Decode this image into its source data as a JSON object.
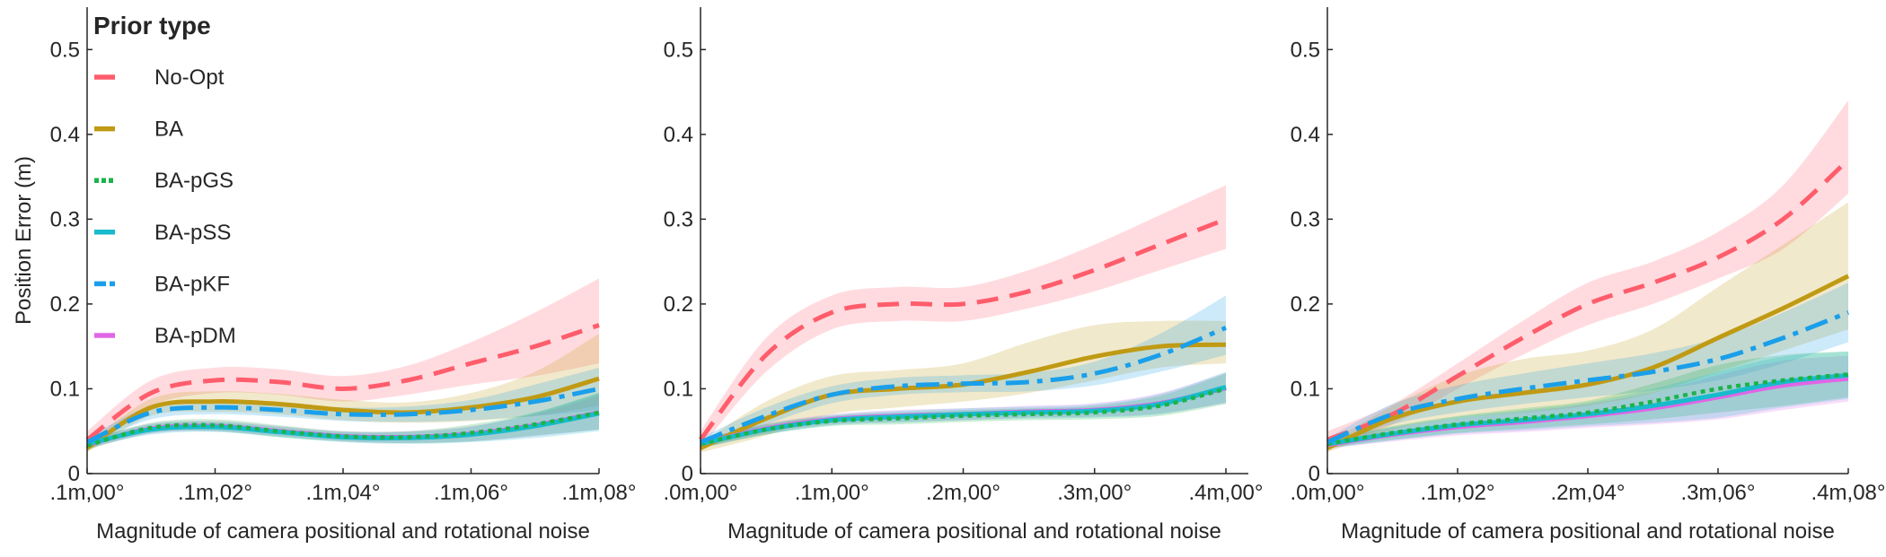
{
  "chart_data": [
    {
      "type": "line",
      "title": "",
      "xlabel": "Magnitude of camera positional and rotational noise",
      "ylabel": "Position Error (m)",
      "ylim": [
        0,
        0.55
      ],
      "yticks": [
        0,
        0.1,
        0.2,
        0.3,
        0.4,
        0.5
      ],
      "ytick_labels": [
        "0",
        "0.1",
        "0.2",
        "0.3",
        "0.4",
        "0.5"
      ],
      "xlim": [
        0,
        4
      ],
      "xticks": [
        0,
        1,
        2,
        3,
        4
      ],
      "xtick_labels": [
        ".1m,00°",
        ".1m,02°",
        ".1m,04°",
        ".1m,06°",
        ".1m,08°"
      ],
      "x": [
        0,
        0.5,
        1,
        1.5,
        2,
        2.5,
        3,
        3.5,
        4
      ],
      "series": [
        {
          "name": "No-Opt",
          "color": "#FF5D6C",
          "style": "dashed",
          "values": [
            0.04,
            0.095,
            0.11,
            0.108,
            0.1,
            0.11,
            0.13,
            0.15,
            0.175
          ],
          "lower": [
            0.03,
            0.08,
            0.095,
            0.093,
            0.085,
            0.093,
            0.105,
            0.115,
            0.13
          ],
          "upper": [
            0.05,
            0.11,
            0.125,
            0.123,
            0.115,
            0.127,
            0.155,
            0.19,
            0.23
          ]
        },
        {
          "name": "BA",
          "color": "#C09A14",
          "style": "solid",
          "values": [
            0.03,
            0.078,
            0.085,
            0.082,
            0.075,
            0.072,
            0.078,
            0.09,
            0.112
          ],
          "lower": [
            0.025,
            0.068,
            0.073,
            0.07,
            0.063,
            0.06,
            0.062,
            0.068,
            0.08
          ],
          "upper": [
            0.035,
            0.088,
            0.097,
            0.094,
            0.087,
            0.084,
            0.095,
            0.12,
            0.165
          ]
        },
        {
          "name": "BA-pGS",
          "color": "#1BB34A",
          "style": "dotted",
          "values": [
            0.033,
            0.054,
            0.057,
            0.05,
            0.044,
            0.043,
            0.048,
            0.058,
            0.072
          ],
          "lower": [
            0.028,
            0.048,
            0.05,
            0.043,
            0.038,
            0.036,
            0.038,
            0.045,
            0.052
          ],
          "upper": [
            0.038,
            0.06,
            0.064,
            0.057,
            0.05,
            0.05,
            0.058,
            0.072,
            0.095
          ]
        },
        {
          "name": "BA-pSS",
          "color": "#17BBCC",
          "style": "solid",
          "values": [
            0.035,
            0.052,
            0.055,
            0.049,
            0.043,
            0.042,
            0.046,
            0.056,
            0.071
          ],
          "lower": [
            0.03,
            0.046,
            0.049,
            0.043,
            0.037,
            0.035,
            0.037,
            0.042,
            0.05
          ],
          "upper": [
            0.04,
            0.058,
            0.061,
            0.055,
            0.049,
            0.049,
            0.055,
            0.072,
            0.095
          ]
        },
        {
          "name": "BA-pKF",
          "color": "#1A9FEA",
          "style": "dashdot",
          "values": [
            0.037,
            0.072,
            0.078,
            0.075,
            0.07,
            0.07,
            0.075,
            0.085,
            0.1
          ],
          "lower": [
            0.032,
            0.064,
            0.07,
            0.067,
            0.062,
            0.061,
            0.063,
            0.068,
            0.075
          ],
          "upper": [
            0.042,
            0.08,
            0.086,
            0.083,
            0.078,
            0.079,
            0.087,
            0.105,
            0.125
          ]
        },
        {
          "name": "BA-pDM",
          "color": "#E066E6",
          "style": "solid",
          "values": [
            0.034,
            0.053,
            0.056,
            0.05,
            0.044,
            0.043,
            0.047,
            0.057,
            0.072
          ],
          "lower": [
            0.029,
            0.047,
            0.05,
            0.044,
            0.038,
            0.036,
            0.038,
            0.044,
            0.052
          ],
          "upper": [
            0.039,
            0.059,
            0.062,
            0.056,
            0.05,
            0.05,
            0.056,
            0.07,
            0.092
          ]
        }
      ],
      "legend": {
        "title": "Prior type",
        "placement": "top-left"
      }
    },
    {
      "type": "line",
      "title": "",
      "xlabel": "Magnitude of camera positional and rotational noise",
      "ylabel": "",
      "ylim": [
        0,
        0.55
      ],
      "yticks": [
        0,
        0.1,
        0.2,
        0.3,
        0.4,
        0.5
      ],
      "ytick_labels": [
        "0",
        "0.1",
        "0.2",
        "0.3",
        "0.4",
        "0.5"
      ],
      "xlim": [
        0,
        4
      ],
      "xticks": [
        0,
        1,
        2,
        3,
        4
      ],
      "xtick_labels": [
        ".0m,00°",
        ".1m,00°",
        ".2m,00°",
        ".3m,00°",
        ".4m,00°"
      ],
      "x": [
        0,
        0.5,
        1,
        1.5,
        2,
        2.5,
        3,
        3.5,
        4
      ],
      "series": [
        {
          "name": "No-Opt",
          "color": "#FF5D6C",
          "style": "dashed",
          "values": [
            0.04,
            0.14,
            0.19,
            0.2,
            0.2,
            0.215,
            0.24,
            0.27,
            0.3
          ],
          "lower": [
            0.03,
            0.12,
            0.17,
            0.18,
            0.18,
            0.195,
            0.215,
            0.24,
            0.265
          ],
          "upper": [
            0.05,
            0.16,
            0.21,
            0.22,
            0.22,
            0.24,
            0.27,
            0.305,
            0.34
          ]
        },
        {
          "name": "BA",
          "color": "#C09A14",
          "style": "solid",
          "values": [
            0.03,
            0.065,
            0.093,
            0.1,
            0.105,
            0.12,
            0.138,
            0.15,
            0.152
          ],
          "lower": [
            0.025,
            0.045,
            0.07,
            0.078,
            0.085,
            0.095,
            0.11,
            0.125,
            0.13
          ],
          "upper": [
            0.035,
            0.085,
            0.115,
            0.122,
            0.13,
            0.155,
            0.175,
            0.18,
            0.18
          ]
        },
        {
          "name": "BA-pGS",
          "color": "#1BB34A",
          "style": "dotted",
          "values": [
            0.035,
            0.052,
            0.062,
            0.065,
            0.068,
            0.07,
            0.072,
            0.08,
            0.1
          ],
          "lower": [
            0.03,
            0.046,
            0.056,
            0.058,
            0.061,
            0.063,
            0.064,
            0.068,
            0.082
          ],
          "upper": [
            0.04,
            0.058,
            0.068,
            0.072,
            0.075,
            0.077,
            0.08,
            0.092,
            0.118
          ]
        },
        {
          "name": "BA-pSS",
          "color": "#17BBCC",
          "style": "solid",
          "values": [
            0.035,
            0.052,
            0.063,
            0.067,
            0.07,
            0.072,
            0.074,
            0.082,
            0.102
          ],
          "lower": [
            0.03,
            0.046,
            0.057,
            0.06,
            0.063,
            0.065,
            0.066,
            0.07,
            0.084
          ],
          "upper": [
            0.04,
            0.058,
            0.069,
            0.074,
            0.077,
            0.079,
            0.082,
            0.094,
            0.12
          ]
        },
        {
          "name": "BA-pKF",
          "color": "#1A9FEA",
          "style": "dashdot",
          "values": [
            0.037,
            0.068,
            0.093,
            0.103,
            0.106,
            0.108,
            0.118,
            0.14,
            0.172
          ],
          "lower": [
            0.032,
            0.058,
            0.083,
            0.093,
            0.096,
            0.097,
            0.104,
            0.12,
            0.14
          ],
          "upper": [
            0.042,
            0.078,
            0.103,
            0.113,
            0.116,
            0.119,
            0.132,
            0.165,
            0.21
          ]
        },
        {
          "name": "BA-pDM",
          "color": "#E066E6",
          "style": "solid",
          "values": [
            0.035,
            0.053,
            0.064,
            0.068,
            0.07,
            0.073,
            0.075,
            0.083,
            0.101
          ],
          "lower": [
            0.03,
            0.047,
            0.058,
            0.061,
            0.063,
            0.066,
            0.067,
            0.071,
            0.083
          ],
          "upper": [
            0.04,
            0.059,
            0.07,
            0.075,
            0.077,
            0.08,
            0.083,
            0.095,
            0.119
          ]
        }
      ]
    },
    {
      "type": "line",
      "title": "",
      "xlabel": "Magnitude of camera positional and rotational noise",
      "ylabel": "",
      "ylim": [
        0,
        0.55
      ],
      "yticks": [
        0,
        0.1,
        0.2,
        0.3,
        0.4,
        0.5
      ],
      "ytick_labels": [
        "0",
        "0.1",
        "0.2",
        "0.3",
        "0.4",
        "0.5"
      ],
      "xlim": [
        0,
        4
      ],
      "xticks": [
        0,
        1,
        2,
        3,
        4
      ],
      "xtick_labels": [
        ".0m,00°",
        ".1m,02°",
        ".2m,04°",
        ".3m,06°",
        ".4m,08°"
      ],
      "x": [
        0,
        0.5,
        1,
        1.5,
        2,
        2.5,
        3,
        3.5,
        4
      ],
      "series": [
        {
          "name": "No-Opt",
          "color": "#FF5D6C",
          "style": "dashed",
          "values": [
            0.04,
            0.07,
            0.115,
            0.16,
            0.2,
            0.225,
            0.255,
            0.3,
            0.37
          ],
          "lower": [
            0.03,
            0.058,
            0.1,
            0.14,
            0.175,
            0.2,
            0.23,
            0.265,
            0.33
          ],
          "upper": [
            0.05,
            0.082,
            0.13,
            0.18,
            0.225,
            0.25,
            0.285,
            0.34,
            0.44
          ]
        },
        {
          "name": "BA",
          "color": "#C09A14",
          "style": "solid",
          "values": [
            0.03,
            0.065,
            0.085,
            0.095,
            0.105,
            0.125,
            0.16,
            0.195,
            0.233
          ],
          "lower": [
            0.025,
            0.052,
            0.065,
            0.072,
            0.08,
            0.095,
            0.12,
            0.145,
            0.17
          ],
          "upper": [
            0.035,
            0.08,
            0.115,
            0.135,
            0.145,
            0.17,
            0.22,
            0.27,
            0.32
          ]
        },
        {
          "name": "BA-pGS",
          "color": "#1BB34A",
          "style": "dotted",
          "values": [
            0.035,
            0.048,
            0.058,
            0.065,
            0.072,
            0.085,
            0.1,
            0.11,
            0.117
          ],
          "lower": [
            0.03,
            0.04,
            0.048,
            0.053,
            0.058,
            0.064,
            0.072,
            0.08,
            0.09
          ],
          "upper": [
            0.04,
            0.056,
            0.068,
            0.077,
            0.086,
            0.106,
            0.128,
            0.14,
            0.144
          ]
        },
        {
          "name": "BA-pSS",
          "color": "#17BBCC",
          "style": "solid",
          "values": [
            0.035,
            0.047,
            0.057,
            0.063,
            0.07,
            0.08,
            0.093,
            0.108,
            0.116
          ],
          "lower": [
            0.03,
            0.039,
            0.047,
            0.051,
            0.056,
            0.06,
            0.066,
            0.078,
            0.088
          ],
          "upper": [
            0.04,
            0.055,
            0.067,
            0.075,
            0.084,
            0.1,
            0.12,
            0.138,
            0.144
          ]
        },
        {
          "name": "BA-pKF",
          "color": "#1A9FEA",
          "style": "dashdot",
          "values": [
            0.037,
            0.07,
            0.088,
            0.1,
            0.11,
            0.12,
            0.135,
            0.16,
            0.19
          ],
          "lower": [
            0.032,
            0.058,
            0.072,
            0.082,
            0.09,
            0.098,
            0.11,
            0.13,
            0.155
          ],
          "upper": [
            0.042,
            0.082,
            0.104,
            0.118,
            0.13,
            0.142,
            0.16,
            0.19,
            0.225
          ]
        },
        {
          "name": "BA-pDM",
          "color": "#E066E6",
          "style": "solid",
          "values": [
            0.034,
            0.046,
            0.055,
            0.061,
            0.068,
            0.077,
            0.09,
            0.104,
            0.112
          ],
          "lower": [
            0.029,
            0.038,
            0.045,
            0.049,
            0.054,
            0.058,
            0.064,
            0.075,
            0.085
          ],
          "upper": [
            0.039,
            0.054,
            0.065,
            0.073,
            0.082,
            0.096,
            0.116,
            0.133,
            0.139
          ]
        }
      ]
    }
  ]
}
